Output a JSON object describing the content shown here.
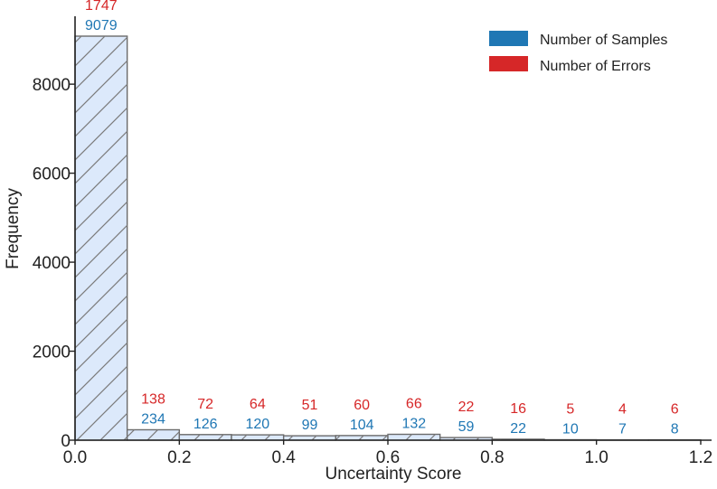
{
  "chart_data": {
    "type": "bar",
    "title": "",
    "xlabel": "Uncertainty Score",
    "ylabel": "Frequency",
    "xlim": [
      0.0,
      1.2
    ],
    "ylim": [
      0,
      9079
    ],
    "grid": false,
    "legend_position": "top-right",
    "bins": [
      {
        "start": 0.0,
        "end": 0.1
      },
      {
        "start": 0.1,
        "end": 0.2
      },
      {
        "start": 0.2,
        "end": 0.3
      },
      {
        "start": 0.3,
        "end": 0.4
      },
      {
        "start": 0.4,
        "end": 0.5
      },
      {
        "start": 0.5,
        "end": 0.6
      },
      {
        "start": 0.6,
        "end": 0.7
      },
      {
        "start": 0.7,
        "end": 0.8
      },
      {
        "start": 0.8,
        "end": 0.9
      },
      {
        "start": 0.9,
        "end": 1.0
      },
      {
        "start": 1.0,
        "end": 1.1
      },
      {
        "start": 1.1,
        "end": 1.2
      }
    ],
    "series": [
      {
        "name": "Number of Samples",
        "color": "#1f77b4",
        "values": [
          9079,
          234,
          126,
          120,
          99,
          104,
          132,
          59,
          22,
          10,
          7,
          8
        ]
      },
      {
        "name": "Number of Errors",
        "color": "#d62728",
        "values": [
          1747,
          138,
          72,
          64,
          51,
          60,
          66,
          22,
          16,
          5,
          4,
          6
        ]
      }
    ],
    "x_ticks": [
      {
        "value": 0.0,
        "label": "0.0"
      },
      {
        "value": 0.2,
        "label": "0.2"
      },
      {
        "value": 0.4,
        "label": "0.4"
      },
      {
        "value": 0.6,
        "label": "0.6"
      },
      {
        "value": 0.8,
        "label": "0.8"
      },
      {
        "value": 1.0,
        "label": "1.0"
      },
      {
        "value": 1.2,
        "label": "1.2"
      }
    ],
    "y_ticks": [
      {
        "value": 0,
        "label": "0"
      },
      {
        "value": 2000,
        "label": "2000"
      },
      {
        "value": 4000,
        "label": "4000"
      },
      {
        "value": 6000,
        "label": "6000"
      },
      {
        "value": 8000,
        "label": "8000"
      }
    ],
    "bar_fill_color": "#dce9fb",
    "bar_edge_color": "#6b6b6b",
    "hatch_color": "#7a7a7a"
  }
}
